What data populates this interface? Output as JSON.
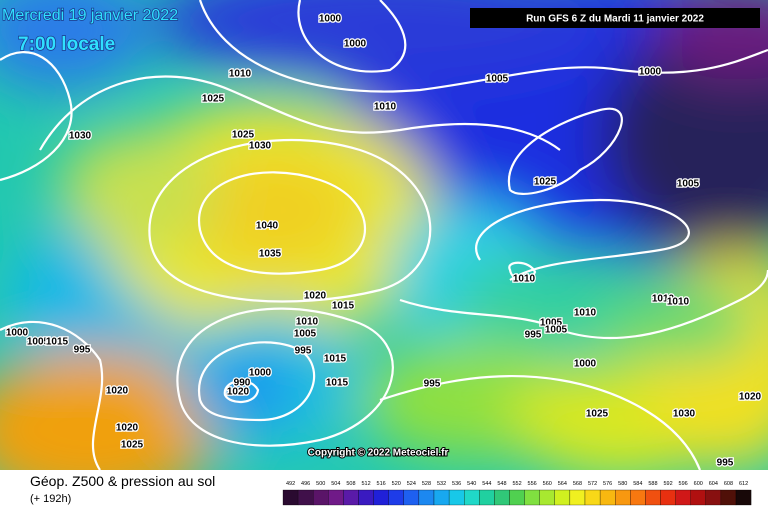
{
  "header": {
    "date": "Mercredi 19 janvier 2022",
    "time": "7:00 locale",
    "run": "Run GFS 6 Z du Mardi 11 janvier 2022"
  },
  "copyright": "Copyright © 2022 Meteociel.fr",
  "footer": {
    "title": "Géop. Z500 & pression au sol",
    "lead_time": "(+ 192h)"
  },
  "isobar_labels": [
    "1000",
    "1000",
    "1010",
    "1025",
    "1010",
    "1005",
    "1000",
    "1025",
    "1030",
    "1030",
    "1025",
    "1005",
    "1040",
    "1035",
    "1010",
    "1020",
    "1015",
    "1010",
    "1010",
    "1010",
    "1005",
    "1010",
    "1005",
    "1005",
    "995",
    "1000",
    "1005",
    "1015",
    "995",
    "995",
    "1015",
    "1000",
    "1000",
    "1015",
    "995",
    "990",
    "1020",
    "1020",
    "1025",
    "1030",
    "1020",
    "1020",
    "1025",
    "995"
  ],
  "colorbar": {
    "labels": [
      492,
      496,
      500,
      504,
      508,
      512,
      516,
      520,
      524,
      528,
      532,
      536,
      540,
      544,
      548,
      552,
      556,
      560,
      564,
      568,
      572,
      576,
      580,
      584,
      588,
      592,
      596,
      600,
      604,
      608,
      612
    ]
  }
}
